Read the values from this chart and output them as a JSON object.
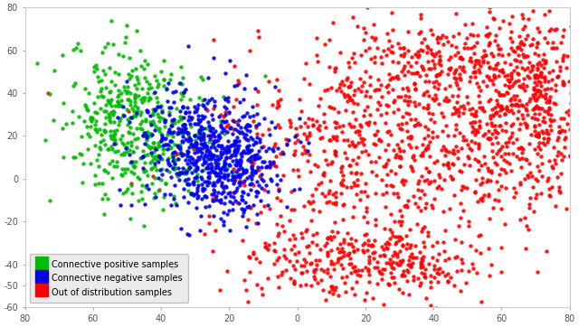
{
  "title": "",
  "xlim": [
    80,
    -80
  ],
  "ylim": [
    -60,
    80
  ],
  "xticks": [
    -80,
    -60,
    -40,
    -20,
    0,
    20,
    40,
    60,
    80
  ],
  "xtick_labels": [
    "80",
    "60",
    "40",
    "20",
    "0",
    "20",
    "40",
    "60",
    "80"
  ],
  "yticks": [
    -60,
    -50,
    -40,
    -20,
    0,
    20,
    40,
    60,
    80
  ],
  "ytick_labels": [
    "-60",
    "-50",
    "-40",
    "-20",
    "0",
    "20",
    "40",
    "60",
    "80"
  ],
  "green_color": "#00bb00",
  "blue_color": "#0000ee",
  "red_color": "#ff0000",
  "bg_color": "#ffffff",
  "legend_labels": [
    "Connective positive samples",
    "Connective negative samples",
    "Out of distribution samples"
  ],
  "seed": 42,
  "n_green": 500,
  "n_blue": 700,
  "n_red": 1800
}
